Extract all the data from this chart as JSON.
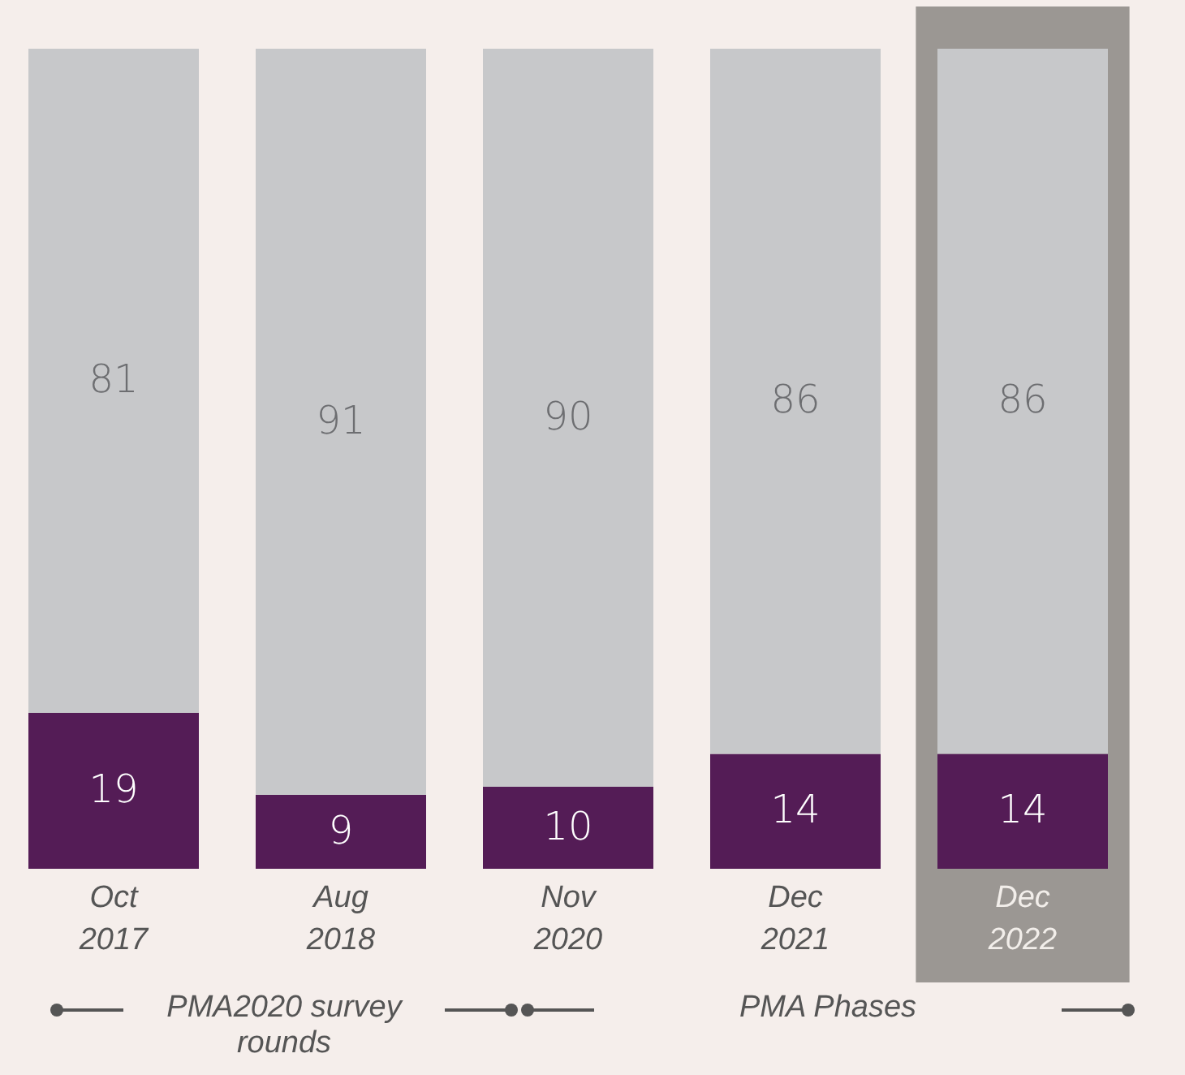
{
  "chart_data": {
    "type": "bar",
    "stacked": true,
    "data_labels": true,
    "legend": false,
    "grid": false,
    "tick_labels": "x",
    "categories": [
      "Oct 2017",
      "Aug 2018",
      "Nov 2020",
      "Dec 2021",
      "Dec 2022"
    ],
    "ylim": [
      0,
      100
    ],
    "series": [
      {
        "color": "#541c56",
        "values": [
          19,
          9,
          10,
          14,
          14
        ]
      },
      {
        "color": "#c7c8ca",
        "values": [
          81,
          91,
          90,
          86,
          86
        ]
      }
    ],
    "bands": [
      {
        "axis": "x",
        "from": "Dec 2022",
        "to": "Dec 2022",
        "color": "#9b9793"
      }
    ],
    "annotations": [
      "PMA2020 survey rounds",
      "PMA Phases"
    ]
  }
}
